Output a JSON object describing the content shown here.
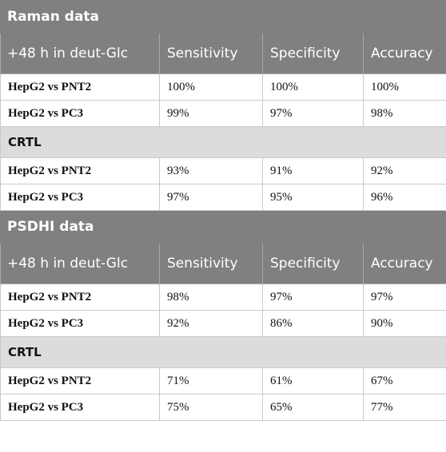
{
  "sections": [
    {
      "title": "Raman data",
      "header": [
        "+48 h in deut-Glc",
        "Sensitivity",
        "Specificity",
        "Accuracy"
      ],
      "rows": [
        [
          "HepG2 vs PNT2",
          "100%",
          "100%",
          "100%"
        ],
        [
          "HepG2 vs PC3",
          "99%",
          "97%",
          "98%"
        ]
      ],
      "control": {
        "label": "CRTL",
        "rows": [
          [
            "HepG2 vs PNT2",
            "93%",
            "91%",
            "92%"
          ],
          [
            "HepG2 vs PC3",
            "97%",
            "95%",
            "96%"
          ]
        ]
      }
    },
    {
      "title": "PSDHI data",
      "header": [
        "+48 h in deut-Glc",
        "Sensitivity",
        "Specificity",
        "Accuracy"
      ],
      "rows": [
        [
          "HepG2 vs PNT2",
          "98%",
          "97%",
          "97%"
        ],
        [
          "HepG2 vs PC3",
          "92%",
          "86%",
          "90%"
        ]
      ],
      "control": {
        "label": "CRTL",
        "rows": [
          [
            "HepG2 vs PNT2",
            "71%",
            "61%",
            "67%"
          ],
          [
            "HepG2 vs PC3",
            "75%",
            "65%",
            "77%"
          ]
        ]
      }
    }
  ]
}
